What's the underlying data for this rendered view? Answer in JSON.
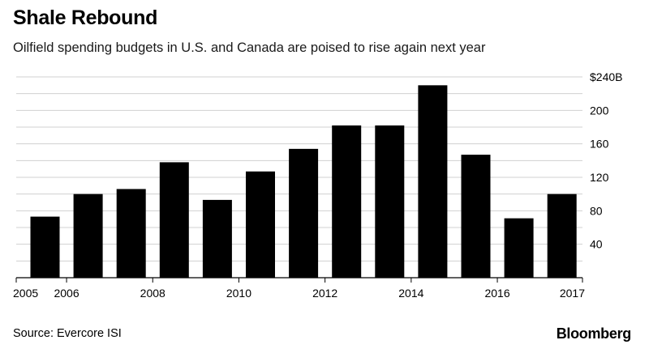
{
  "title": "Shale Rebound",
  "subtitle": "Oilfield spending budgets in U.S. and Canada are poised to rise again next year",
  "source": "Source: Evercore ISI",
  "brand": "Bloomberg",
  "chart_data": {
    "type": "bar",
    "title": "Shale Rebound",
    "subtitle": "Oilfield spending budgets in U.S. and Canada are poised to rise again next year",
    "years": [
      2005,
      2006,
      2007,
      2008,
      2009,
      2010,
      2011,
      2012,
      2013,
      2014,
      2015,
      2016,
      2017
    ],
    "values": [
      73,
      100,
      106,
      138,
      93,
      127,
      154,
      182,
      182,
      230,
      147,
      71,
      100
    ],
    "x_ticks": [
      "2005",
      "2006",
      "2008",
      "2010",
      "2012",
      "2014",
      "2016",
      "2017"
    ],
    "y_ticks": [
      {
        "value": 40,
        "label": "40"
      },
      {
        "value": 80,
        "label": "80"
      },
      {
        "value": 120,
        "label": "120"
      },
      {
        "value": 160,
        "label": "160"
      },
      {
        "value": 200,
        "label": "200"
      },
      {
        "value": 240,
        "label": "$240B"
      }
    ],
    "ylim": [
      0,
      240
    ],
    "grid": true,
    "bar_color": "#000000",
    "grid_color": "#d0d0d0"
  }
}
